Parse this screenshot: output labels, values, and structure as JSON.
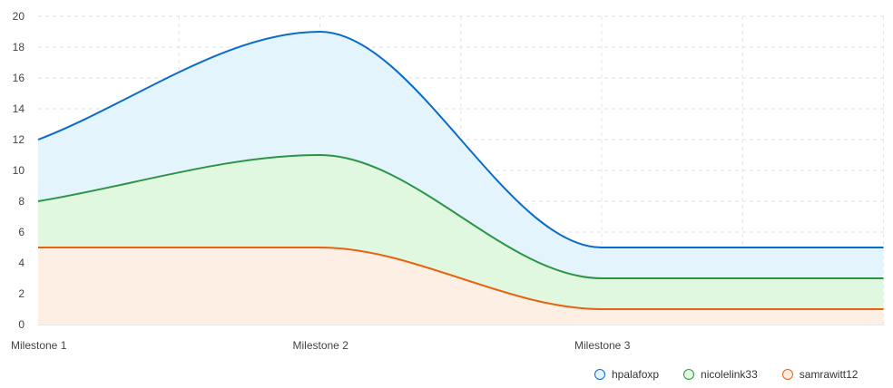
{
  "chart_data": {
    "type": "area",
    "title": "",
    "xlabel": "",
    "ylabel": "",
    "categories": [
      "Milestone 1",
      "Milestone 2",
      "Milestone 3",
      ""
    ],
    "ylim": [
      0,
      20
    ],
    "yticks": [
      0,
      2,
      4,
      6,
      8,
      10,
      12,
      14,
      16,
      18,
      20
    ],
    "grid": true,
    "legend_position": "bottom-right",
    "stacked": true,
    "series": [
      {
        "name": "samrawitt12",
        "values": [
          5,
          5,
          1,
          1
        ],
        "color": "#e8620f",
        "fill": "#fdefe3"
      },
      {
        "name": "nicolelink33",
        "values": [
          8,
          11,
          3,
          3
        ],
        "color": "#2e9445",
        "fill": "#e1f8e0"
      },
      {
        "name": "hpalafoxp",
        "values": [
          12,
          19,
          5,
          5
        ],
        "color": "#0b6bcb",
        "fill": "#e3f4fd"
      }
    ]
  },
  "legend": {
    "items": [
      {
        "label": "hpalafoxp",
        "color": "#0b6bcb",
        "fill": "#e3f4fd"
      },
      {
        "label": "nicolelink33",
        "color": "#2e9445",
        "fill": "#e1f8e0"
      },
      {
        "label": "samrawitt12",
        "color": "#e8620f",
        "fill": "#fdefe3"
      }
    ]
  }
}
